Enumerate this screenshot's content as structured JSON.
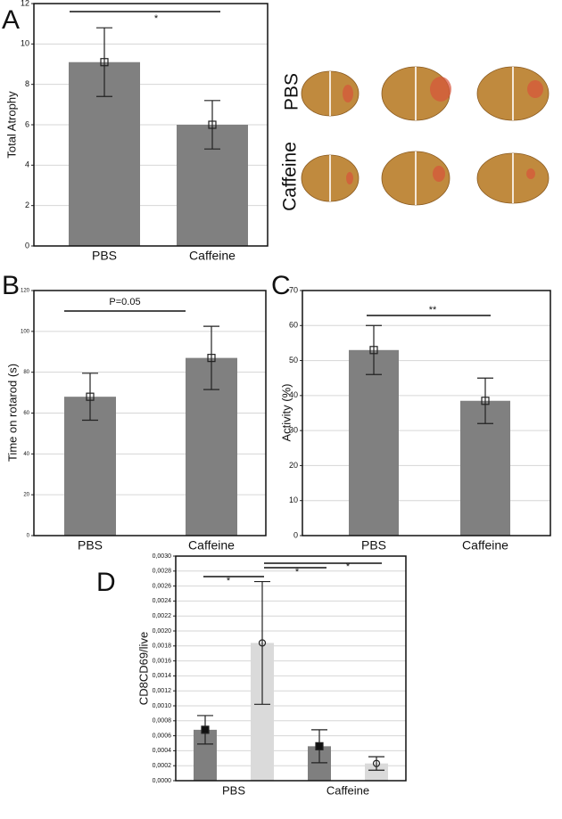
{
  "chart_data": [
    {
      "type": "bar",
      "panel_label": "A",
      "y_label": "Total Atrophy",
      "categories": [
        "PBS",
        "Caffeine"
      ],
      "values": [
        9.1,
        6.0
      ],
      "errors": [
        1.7,
        1.2
      ],
      "color": "#808080",
      "marker": "open-square",
      "ylim": [
        0,
        12
      ],
      "yticks": [
        0,
        2,
        4,
        6,
        8,
        10,
        12
      ],
      "grid": true,
      "annotations": [
        "*"
      ]
    },
    {
      "type": "bar",
      "panel_label": "B",
      "y_label": "Time on rotarod (s)",
      "categories": [
        "PBS",
        "Caffeine"
      ],
      "values": [
        68,
        87
      ],
      "errors": [
        11.5,
        15.5
      ],
      "color": "#808080",
      "marker": "open-square",
      "ylim": [
        0,
        120
      ],
      "yticks": [
        0,
        20,
        40,
        60,
        80,
        100,
        120
      ],
      "grid": true,
      "annotations": [
        "P=0.05"
      ]
    },
    {
      "type": "bar",
      "panel_label": "C",
      "y_label": "Activity (%)",
      "categories": [
        "PBS",
        "Caffeine"
      ],
      "values": [
        53,
        38.5
      ],
      "errors": [
        7,
        6.5
      ],
      "color": "#808080",
      "marker": "open-square",
      "ylim": [
        0,
        70
      ],
      "yticks": [
        0,
        10,
        20,
        30,
        40,
        50,
        60,
        70
      ],
      "grid": true,
      "annotations": [
        "**"
      ]
    },
    {
      "type": "bar",
      "panel_label": "D",
      "y_label": "CD8CD69/live",
      "categories": [
        "PBS",
        "Caffeine"
      ],
      "series": [
        {
          "color": "#7f7f7f",
          "marker": "filled-square",
          "values": [
            0.00068,
            0.00046
          ],
          "errors": [
            0.00019,
            0.00022
          ]
        },
        {
          "color": "#dadada",
          "marker": "open-circle",
          "values": [
            0.00184,
            0.00023
          ],
          "errors": [
            0.00082,
            9e-05
          ]
        }
      ],
      "ylim": [
        0,
        0.003
      ],
      "yticks": [
        {
          "value": 0,
          "label": "0,0000"
        },
        {
          "value": 0.0002,
          "label": "0,0002"
        },
        {
          "value": 0.0004,
          "label": "0,0004"
        },
        {
          "value": 0.0006,
          "label": "0,0006"
        },
        {
          "value": 0.0008,
          "label": "0,0008"
        },
        {
          "value": 0.001,
          "label": "0,0010"
        },
        {
          "value": 0.0012,
          "label": "0,0012"
        },
        {
          "value": 0.0014,
          "label": "0,0014"
        },
        {
          "value": 0.0016,
          "label": "0,0016"
        },
        {
          "value": 0.0018,
          "label": "0,0018"
        },
        {
          "value": 0.002,
          "label": "0,0020"
        },
        {
          "value": 0.0022,
          "label": "0,0022"
        },
        {
          "value": 0.0024,
          "label": "0,0024"
        },
        {
          "value": 0.0026,
          "label": "0,0026"
        },
        {
          "value": 0.0028,
          "label": "0,0028"
        },
        {
          "value": 0.003,
          "label": "0,0030"
        }
      ],
      "grid": true,
      "annotations": [
        "*",
        "*",
        "*"
      ]
    }
  ],
  "images": {
    "row_labels": [
      "PBS",
      "Caffeine"
    ]
  }
}
